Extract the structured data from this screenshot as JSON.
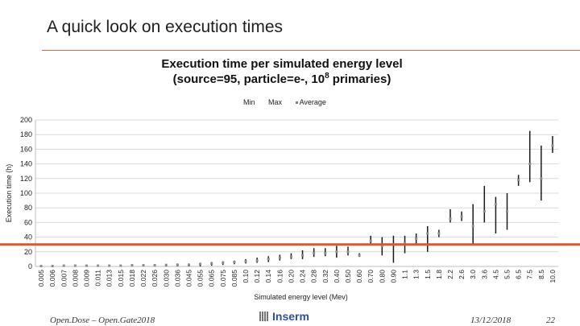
{
  "slide": {
    "title": "A quick look on execution times",
    "footer_left": "Open.Dose – Open.Gate2018",
    "logo_text": "Inserm",
    "date": "13/12/2018",
    "page": "22"
  },
  "colors": {
    "accent_line": "#e1552a",
    "title_rule": "#c9704a",
    "range_bar": "#1a1a1a",
    "average": "#8c8c8c",
    "grid": "#d9d9d9"
  },
  "chart_data": {
    "type": "stock",
    "title_line1": "Execution time per simulated energy level",
    "title_line2_pre": "(source=95, particle=e-, 10",
    "title_line2_sup": "8",
    "title_line2_post": " primaries)",
    "legend": [
      "Min",
      "Max",
      "Average"
    ],
    "ylabel": "Execution time (h)",
    "xlabel": "Simulated energy level (Mev)",
    "ylim": [
      0,
      200
    ],
    "yticks": [
      0,
      20,
      40,
      60,
      80,
      100,
      120,
      140,
      160,
      180,
      200
    ],
    "reference_line": 30,
    "categories": [
      "0.005",
      "0.006",
      "0.007",
      "0.008",
      "0.009",
      "0.011",
      "0.013",
      "0.015",
      "0.018",
      "0.022",
      "0.026",
      "0.030",
      "0.036",
      "0.045",
      "0.055",
      "0.065",
      "0.075",
      "0.085",
      "0.10",
      "0.12",
      "0.14",
      "0.16",
      "0.20",
      "0.24",
      "0.28",
      "0.32",
      "0.40",
      "0.50",
      "0.60",
      "0.70",
      "0.80",
      "0.90",
      "1.1",
      "1.3",
      "1.5",
      "1.8",
      "2.2",
      "2.6",
      "3.0",
      "3.6",
      "4.5",
      "5.5",
      "6.5",
      "7.5",
      "8.5",
      "10.0"
    ],
    "series": [
      {
        "name": "Min",
        "values": [
          0,
          0,
          0,
          0,
          0,
          0,
          0,
          0,
          0,
          0,
          0,
          0,
          0,
          0,
          0,
          1,
          2,
          3,
          4,
          5,
          6,
          8,
          10,
          10,
          13,
          14,
          12,
          15,
          13,
          30,
          15,
          5,
          18,
          30,
          20,
          40,
          60,
          62,
          30,
          60,
          45,
          50,
          110,
          115,
          90,
          155
        ]
      },
      {
        "name": "Max",
        "values": [
          1,
          1,
          2,
          2,
          2,
          2,
          2,
          2,
          3,
          3,
          3,
          3,
          4,
          4,
          5,
          6,
          7,
          8,
          10,
          12,
          14,
          16,
          18,
          22,
          25,
          25,
          28,
          27,
          18,
          42,
          40,
          42,
          42,
          45,
          55,
          50,
          78,
          75,
          85,
          110,
          95,
          100,
          125,
          185,
          165,
          178
        ]
      },
      {
        "name": "Average",
        "values": [
          0.5,
          0.5,
          1,
          1,
          1,
          1,
          1,
          1,
          1.5,
          1.5,
          1.5,
          2,
          2,
          2,
          3,
          4,
          5,
          6,
          7,
          8,
          10,
          12,
          13,
          15,
          18,
          18,
          20,
          20,
          15,
          35,
          28,
          30,
          32,
          38,
          45,
          45,
          65,
          68,
          55,
          75,
          85,
          75,
          118,
          140,
          120,
          165
        ]
      }
    ]
  }
}
